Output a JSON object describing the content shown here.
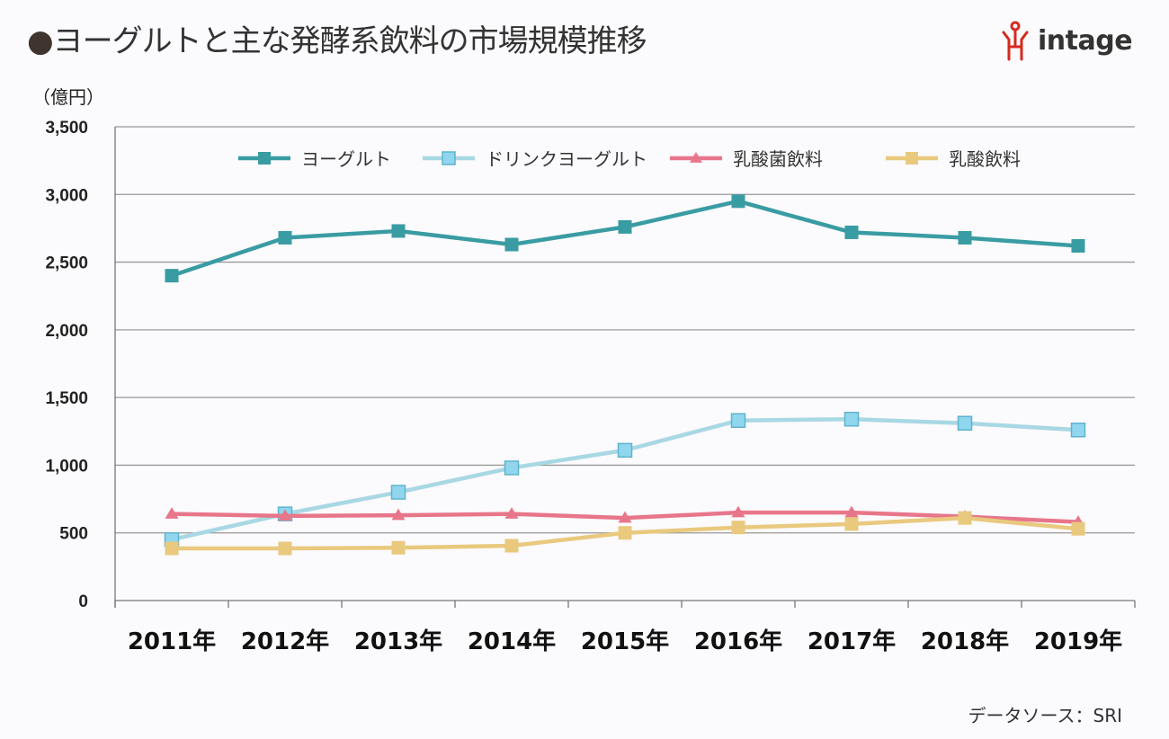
{
  "header": {
    "bullet": "●",
    "title": "ヨーグルトと主な発酵系飲料の市場規模推移",
    "logo_text": "intage"
  },
  "footer": {
    "source": "データソース：SRI"
  },
  "chart_data": {
    "type": "line",
    "title": "ヨーグルトと主な発酵系飲料の市場規模推移",
    "ylabel": "（億円）",
    "xlabel": "",
    "ylim": [
      0,
      3500
    ],
    "yticks": [
      0,
      500,
      1000,
      1500,
      2000,
      2500,
      3000,
      3500
    ],
    "ytick_labels": [
      "0",
      "500",
      "1,000",
      "1,500",
      "2,000",
      "2,500",
      "3,000",
      "3,500"
    ],
    "categories": [
      "2011年",
      "2012年",
      "2013年",
      "2014年",
      "2015年",
      "2016年",
      "2017年",
      "2018年",
      "2019年"
    ],
    "grid": "horizontal",
    "legend": "top",
    "series": [
      {
        "name": "ヨーグルト",
        "color": "#3a9ca3",
        "marker": "square",
        "values": [
          2400,
          2680,
          2730,
          2630,
          2760,
          2950,
          2720,
          2680,
          2620
        ]
      },
      {
        "name": "ドリンクヨーグルト",
        "color": "#a8d8e4",
        "marker": "square-open",
        "values": [
          450,
          640,
          800,
          980,
          1110,
          1330,
          1340,
          1310,
          1260
        ]
      },
      {
        "name": "乳酸菌飲料",
        "color": "#e8768a",
        "marker": "triangle",
        "values": [
          640,
          625,
          630,
          640,
          610,
          650,
          650,
          620,
          580
        ]
      },
      {
        "name": "乳酸飲料",
        "color": "#e9c97e",
        "marker": "square",
        "values": [
          385,
          385,
          390,
          405,
          500,
          540,
          565,
          610,
          530
        ]
      }
    ]
  }
}
